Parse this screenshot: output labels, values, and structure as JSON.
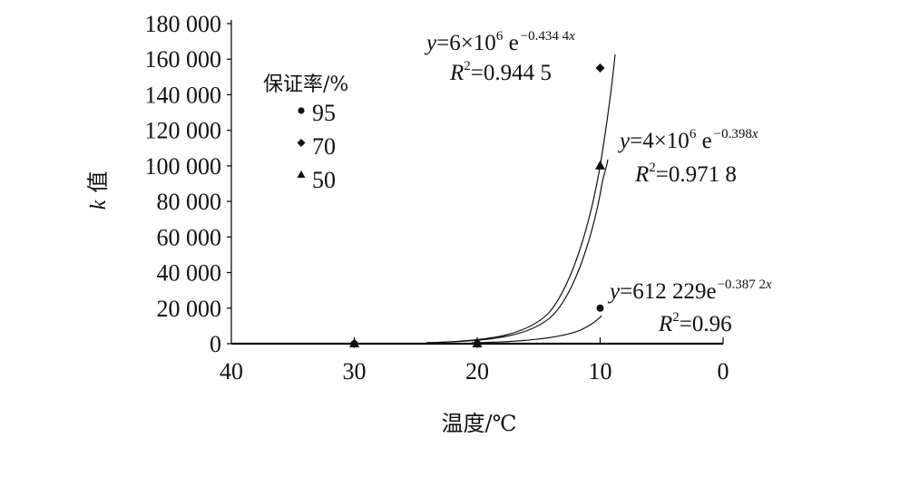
{
  "chart_data": {
    "type": "scatter",
    "title": "",
    "xlabel": "温度/℃",
    "ylabel": "k 值",
    "ylabel_italic_part": "k",
    "ylabel_rest": "值",
    "xlim": [
      40,
      0
    ],
    "x_reversed": true,
    "ylim": [
      0,
      180000
    ],
    "grid": false,
    "x_ticks": [
      40,
      30,
      20,
      10,
      0
    ],
    "x_tick_labels": [
      "40",
      "30",
      "20",
      "10",
      "0"
    ],
    "y_ticks": [
      0,
      20000,
      40000,
      60000,
      80000,
      100000,
      120000,
      140000,
      160000,
      180000
    ],
    "y_tick_labels": [
      "0",
      "20 000",
      "40 000",
      "60 000",
      "80 000",
      "100 000",
      "120 000",
      "140 000",
      "160 000",
      "180 000"
    ],
    "legend": {
      "title": "保证率/%",
      "position": "upper-left inside plot",
      "entries": [
        {
          "label": "95",
          "marker": "circle"
        },
        {
          "label": "70",
          "marker": "diamond"
        },
        {
          "label": "50",
          "marker": "triangle"
        }
      ]
    },
    "series": [
      {
        "name": "95",
        "marker": "circle",
        "points": [
          {
            "x": 30,
            "y": 0
          },
          {
            "x": 20,
            "y": 0
          },
          {
            "x": 10,
            "y": 20000
          }
        ],
        "trendline": {
          "type": "exponential",
          "equation": "y=612 229e^(-0.387 2x)",
          "r2": "0.96",
          "end_value_at_10": 16000
        }
      },
      {
        "name": "70",
        "marker": "diamond",
        "points": [
          {
            "x": 30,
            "y": 0
          },
          {
            "x": 20,
            "y": 0
          },
          {
            "x": 10,
            "y": 155000
          }
        ],
        "trendline": {
          "type": "exponential",
          "equation": "y=6×10^6 e^(-0.434 4x)",
          "r2": "0.944 5",
          "end_value_at_9": 162000
        }
      },
      {
        "name": "50",
        "marker": "triangle",
        "points": [
          {
            "x": 30,
            "y": 0
          },
          {
            "x": 20,
            "y": 0
          },
          {
            "x": 10,
            "y": 100000
          }
        ],
        "trendline": {
          "type": "exponential",
          "equation": "y=4×10^6 e^(-0.398x)",
          "r2": "0.971 8",
          "end_value_at_9": 103000
        }
      }
    ],
    "annotations": [
      {
        "series": "70",
        "y_prefix": "y",
        "eq_main": "=6×10",
        "eq_exp": "6",
        "eq_e": " e",
        "eq_rate": "−0.434 4",
        "eq_var": "x",
        "r2_prefix": "R",
        "r2_exp": "2",
        "r2_value": "=0.944 5"
      },
      {
        "series": "50",
        "y_prefix": "y",
        "eq_main": "=4×10",
        "eq_exp": "6",
        "eq_e": " e",
        "eq_rate": "−0.398",
        "eq_var": "x",
        "r2_prefix": "R",
        "r2_exp": "2",
        "r2_value": "=0.971 8"
      },
      {
        "series": "95",
        "y_prefix": "y",
        "eq_main": "=612 229e",
        "eq_exp": "",
        "eq_e": "",
        "eq_rate": "−0.387 2",
        "eq_var": "x",
        "r2_prefix": "R",
        "r2_exp": "2",
        "r2_value": "=0.96"
      }
    ]
  }
}
